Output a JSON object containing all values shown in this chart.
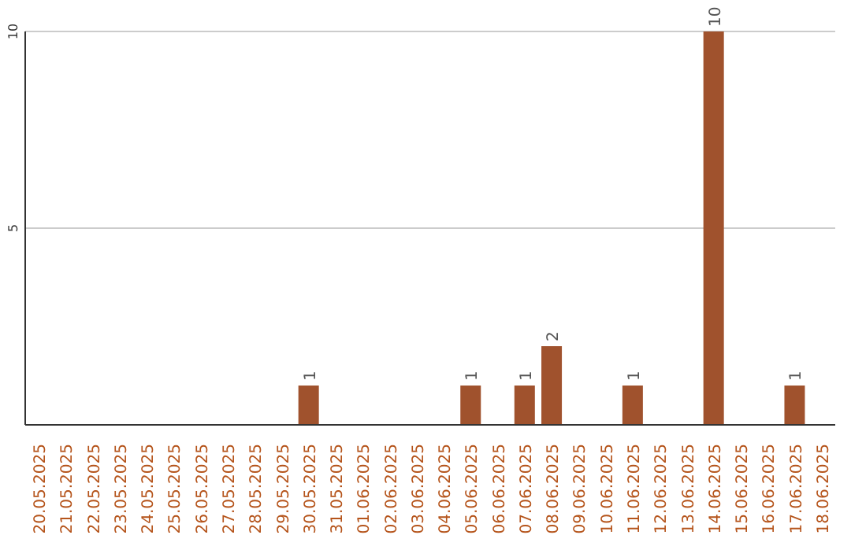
{
  "chart_data": {
    "type": "bar",
    "categories": [
      "20.05.2025",
      "21.05.2025",
      "22.05.2025",
      "23.05.2025",
      "24.05.2025",
      "25.05.2025",
      "26.05.2025",
      "27.05.2025",
      "28.05.2025",
      "29.05.2025",
      "30.05.2025",
      "31.05.2025",
      "01.06.2025",
      "02.06.2025",
      "03.06.2025",
      "04.06.2025",
      "05.06.2025",
      "06.06.2025",
      "07.06.2025",
      "08.06.2025",
      "09.06.2025",
      "10.06.2025",
      "11.06.2025",
      "12.06.2025",
      "13.06.2025",
      "14.06.2025",
      "15.06.2025",
      "16.06.2025",
      "17.06.2025",
      "18.06.2025"
    ],
    "values": [
      0,
      0,
      0,
      0,
      0,
      0,
      0,
      0,
      0,
      0,
      1,
      0,
      0,
      0,
      0,
      0,
      1,
      0,
      1,
      2,
      0,
      0,
      1,
      0,
      0,
      10,
      0,
      0,
      1,
      0
    ],
    "value_labels": [
      null,
      null,
      null,
      null,
      null,
      null,
      null,
      null,
      null,
      null,
      "1",
      null,
      null,
      null,
      null,
      null,
      "1",
      null,
      "1",
      "2",
      null,
      null,
      "1",
      null,
      null,
      "10",
      null,
      null,
      "1",
      null
    ],
    "color": "#a0522d",
    "ylim": [
      0,
      10
    ],
    "yticks": [
      5,
      10
    ],
    "grid": "y"
  }
}
